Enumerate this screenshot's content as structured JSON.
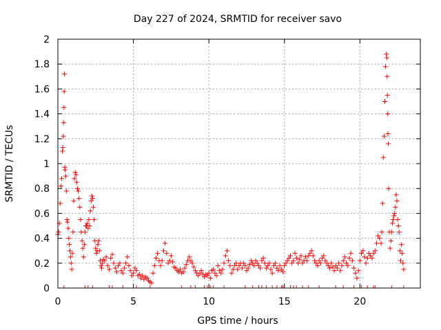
{
  "chart_data": {
    "type": "scatter",
    "title": "Day 227 of 2024, SRMTID for receiver savo",
    "xlabel": "GPS time / hours",
    "ylabel": "SRMTID / TECUs",
    "xlim": [
      0,
      24
    ],
    "ylim": [
      0,
      2
    ],
    "xticks": [
      0,
      5,
      10,
      15,
      20
    ],
    "xtick_labels": [
      "0",
      "5",
      "10",
      "15",
      "20"
    ],
    "yticks": [
      0,
      0.2,
      0.4,
      0.6,
      0.8,
      1,
      1.2,
      1.4,
      1.6,
      1.8,
      2
    ],
    "ytick_labels": [
      "0",
      "0.2",
      "0.4",
      "0.6",
      "0.8",
      "1",
      "1.2",
      "1.4",
      "1.6",
      "1.8",
      "2"
    ],
    "grid": true,
    "marker": "+",
    "color": "#ff0000",
    "series": [
      {
        "name": "savo",
        "points": [
          [
            0.0,
            0.43
          ],
          [
            0.05,
            0.45
          ],
          [
            0.1,
            0.52
          ],
          [
            0.15,
            0.68
          ],
          [
            0.2,
            0.82
          ],
          [
            0.25,
            0.88
          ],
          [
            0.3,
            1.1
          ],
          [
            0.33,
            1.13
          ],
          [
            0.36,
            1.22
          ],
          [
            0.38,
            1.33
          ],
          [
            0.4,
            1.45
          ],
          [
            0.42,
            1.58
          ],
          [
            0.44,
            1.72
          ],
          [
            0.46,
            0.97
          ],
          [
            0.48,
            0.95
          ],
          [
            0.52,
            0.9
          ],
          [
            0.56,
            0.78
          ],
          [
            0.6,
            0.55
          ],
          [
            0.64,
            0.53
          ],
          [
            0.68,
            0.48
          ],
          [
            0.72,
            0.4
          ],
          [
            0.76,
            0.35
          ],
          [
            0.8,
            0.3
          ],
          [
            0.84,
            0.25
          ],
          [
            0.88,
            0.2
          ],
          [
            0.92,
            0.15
          ],
          [
            0.96,
            0.28
          ],
          [
            1.0,
            0.45
          ],
          [
            1.05,
            0.7
          ],
          [
            1.1,
            0.88
          ],
          [
            1.15,
            0.93
          ],
          [
            1.2,
            0.91
          ],
          [
            1.25,
            0.85
          ],
          [
            1.3,
            0.8
          ],
          [
            1.35,
            0.78
          ],
          [
            1.4,
            0.72
          ],
          [
            1.45,
            0.65
          ],
          [
            1.5,
            0.55
          ],
          [
            1.55,
            0.45
          ],
          [
            1.6,
            0.38
          ],
          [
            1.65,
            0.32
          ],
          [
            1.7,
            0.25
          ],
          [
            1.75,
            0.35
          ],
          [
            1.8,
            0.45
          ],
          [
            1.85,
            0.5
          ],
          [
            1.9,
            0.5
          ],
          [
            1.95,
            0.52
          ],
          [
            2.0,
            0.48
          ],
          [
            2.05,
            0.55
          ],
          [
            2.1,
            0.5
          ],
          [
            2.15,
            0.62
          ],
          [
            2.2,
            0.7
          ],
          [
            2.25,
            0.74
          ],
          [
            2.3,
            0.72
          ],
          [
            2.35,
            0.65
          ],
          [
            2.4,
            0.55
          ],
          [
            2.45,
            0.38
          ],
          [
            2.5,
            0.32
          ],
          [
            2.55,
            0.28
          ],
          [
            2.6,
            0.3
          ],
          [
            2.65,
            0.35
          ],
          [
            2.7,
            0.38
          ],
          [
            2.75,
            0.3
          ],
          [
            2.8,
            0.22
          ],
          [
            2.85,
            0.18
          ],
          [
            2.9,
            0.16
          ],
          [
            2.95,
            0.2
          ],
          [
            3.0,
            0.23
          ],
          [
            3.1,
            0.22
          ],
          [
            3.2,
            0.25
          ],
          [
            3.3,
            0.18
          ],
          [
            3.4,
            0.15
          ],
          [
            3.5,
            0.24
          ],
          [
            3.6,
            0.27
          ],
          [
            3.7,
            0.2
          ],
          [
            3.8,
            0.16
          ],
          [
            3.9,
            0.13
          ],
          [
            4.0,
            0.18
          ],
          [
            4.1,
            0.2
          ],
          [
            4.2,
            0.14
          ],
          [
            4.3,
            0.12
          ],
          [
            4.4,
            0.16
          ],
          [
            4.5,
            0.2
          ],
          [
            4.6,
            0.25
          ],
          [
            4.7,
            0.18
          ],
          [
            4.8,
            0.14
          ],
          [
            4.9,
            0.1
          ],
          [
            5.0,
            0.12
          ],
          [
            5.1,
            0.16
          ],
          [
            5.2,
            0.14
          ],
          [
            5.3,
            0.1
          ],
          [
            5.4,
            0.11
          ],
          [
            5.5,
            0.08
          ],
          [
            5.6,
            0.1
          ],
          [
            5.7,
            0.07
          ],
          [
            5.8,
            0.09
          ],
          [
            5.9,
            0.08
          ],
          [
            6.0,
            0.06
          ],
          [
            6.1,
            0.05
          ],
          [
            6.2,
            0.04
          ],
          [
            6.3,
            0.12
          ],
          [
            6.4,
            0.18
          ],
          [
            6.5,
            0.24
          ],
          [
            6.6,
            0.28
          ],
          [
            6.7,
            0.22
          ],
          [
            6.8,
            0.18
          ],
          [
            6.9,
            0.22
          ],
          [
            7.0,
            0.3
          ],
          [
            7.1,
            0.36
          ],
          [
            7.2,
            0.28
          ],
          [
            7.3,
            0.2
          ],
          [
            7.4,
            0.22
          ],
          [
            7.5,
            0.26
          ],
          [
            7.6,
            0.21
          ],
          [
            7.7,
            0.17
          ],
          [
            7.8,
            0.16
          ],
          [
            7.9,
            0.14
          ],
          [
            8.0,
            0.13
          ],
          [
            8.1,
            0.15
          ],
          [
            8.2,
            0.12
          ],
          [
            8.3,
            0.13
          ],
          [
            8.4,
            0.16
          ],
          [
            8.5,
            0.19
          ],
          [
            8.6,
            0.22
          ],
          [
            8.7,
            0.25
          ],
          [
            8.8,
            0.22
          ],
          [
            8.9,
            0.2
          ],
          [
            9.0,
            0.17
          ],
          [
            9.1,
            0.14
          ],
          [
            9.2,
            0.12
          ],
          [
            9.3,
            0.1
          ],
          [
            9.4,
            0.12
          ],
          [
            9.5,
            0.14
          ],
          [
            9.6,
            0.11
          ],
          [
            9.7,
            0.09
          ],
          [
            9.8,
            0.11
          ],
          [
            9.9,
            0.1
          ],
          [
            10.0,
            0.12
          ],
          [
            10.1,
            0.08
          ],
          [
            10.2,
            0.14
          ],
          [
            10.3,
            0.15
          ],
          [
            10.4,
            0.12
          ],
          [
            10.5,
            0.1
          ],
          [
            10.6,
            0.18
          ],
          [
            10.7,
            0.14
          ],
          [
            10.8,
            0.12
          ],
          [
            10.9,
            0.15
          ],
          [
            11.0,
            0.2
          ],
          [
            11.1,
            0.26
          ],
          [
            11.2,
            0.3
          ],
          [
            11.3,
            0.22
          ],
          [
            11.4,
            0.18
          ],
          [
            11.5,
            0.12
          ],
          [
            11.6,
            0.15
          ],
          [
            11.7,
            0.18
          ],
          [
            11.8,
            0.2
          ],
          [
            11.9,
            0.15
          ],
          [
            12.0,
            0.18
          ],
          [
            12.1,
            0.2
          ],
          [
            12.2,
            0.16
          ],
          [
            12.3,
            0.2
          ],
          [
            12.4,
            0.18
          ],
          [
            12.5,
            0.14
          ],
          [
            12.6,
            0.16
          ],
          [
            12.7,
            0.19
          ],
          [
            12.8,
            0.22
          ],
          [
            12.9,
            0.2
          ],
          [
            13.0,
            0.18
          ],
          [
            13.1,
            0.22
          ],
          [
            13.2,
            0.2
          ],
          [
            13.3,
            0.18
          ],
          [
            13.4,
            0.16
          ],
          [
            13.5,
            0.22
          ],
          [
            13.6,
            0.24
          ],
          [
            13.7,
            0.2
          ],
          [
            13.8,
            0.16
          ],
          [
            13.9,
            0.18
          ],
          [
            14.0,
            0.2
          ],
          [
            14.1,
            0.15
          ],
          [
            14.2,
            0.12
          ],
          [
            14.3,
            0.18
          ],
          [
            14.4,
            0.2
          ],
          [
            14.5,
            0.16
          ],
          [
            14.6,
            0.14
          ],
          [
            14.7,
            0.18
          ],
          [
            14.8,
            0.15
          ],
          [
            14.9,
            0.13
          ],
          [
            15.0,
            0.18
          ],
          [
            15.1,
            0.2
          ],
          [
            15.2,
            0.22
          ],
          [
            15.3,
            0.24
          ],
          [
            15.4,
            0.26
          ],
          [
            15.5,
            0.2
          ],
          [
            15.6,
            0.22
          ],
          [
            15.7,
            0.28
          ],
          [
            15.8,
            0.24
          ],
          [
            15.9,
            0.2
          ],
          [
            16.0,
            0.23
          ],
          [
            16.1,
            0.26
          ],
          [
            16.2,
            0.2
          ],
          [
            16.3,
            0.22
          ],
          [
            16.4,
            0.25
          ],
          [
            16.5,
            0.22
          ],
          [
            16.6,
            0.26
          ],
          [
            16.7,
            0.28
          ],
          [
            16.8,
            0.3
          ],
          [
            16.9,
            0.26
          ],
          [
            17.0,
            0.22
          ],
          [
            17.1,
            0.2
          ],
          [
            17.2,
            0.18
          ],
          [
            17.3,
            0.22
          ],
          [
            17.4,
            0.2
          ],
          [
            17.5,
            0.24
          ],
          [
            17.6,
            0.26
          ],
          [
            17.7,
            0.22
          ],
          [
            17.8,
            0.2
          ],
          [
            17.9,
            0.18
          ],
          [
            18.0,
            0.16
          ],
          [
            18.1,
            0.2
          ],
          [
            18.2,
            0.17
          ],
          [
            18.3,
            0.14
          ],
          [
            18.4,
            0.18
          ],
          [
            18.5,
            0.16
          ],
          [
            18.6,
            0.2
          ],
          [
            18.7,
            0.14
          ],
          [
            18.8,
            0.18
          ],
          [
            18.9,
            0.22
          ],
          [
            19.0,
            0.25
          ],
          [
            19.1,
            0.2
          ],
          [
            19.2,
            0.18
          ],
          [
            19.3,
            0.24
          ],
          [
            19.4,
            0.28
          ],
          [
            19.5,
            0.22
          ],
          [
            19.6,
            0.16
          ],
          [
            19.7,
            0.12
          ],
          [
            19.8,
            0.08
          ],
          [
            19.9,
            0.14
          ],
          [
            20.0,
            0.22
          ],
          [
            20.1,
            0.28
          ],
          [
            20.2,
            0.3
          ],
          [
            20.3,
            0.25
          ],
          [
            20.4,
            0.2
          ],
          [
            20.5,
            0.24
          ],
          [
            20.6,
            0.28
          ],
          [
            20.7,
            0.26
          ],
          [
            20.8,
            0.24
          ],
          [
            20.9,
            0.28
          ],
          [
            21.0,
            0.3
          ],
          [
            21.1,
            0.36
          ],
          [
            21.2,
            0.42
          ],
          [
            21.3,
            0.4
          ],
          [
            21.4,
            0.36
          ],
          [
            21.45,
            0.45
          ],
          [
            21.5,
            0.68
          ],
          [
            21.55,
            1.05
          ],
          [
            21.6,
            1.22
          ],
          [
            21.65,
            1.5
          ],
          [
            21.7,
            1.78
          ],
          [
            21.75,
            1.88
          ],
          [
            21.78,
            1.85
          ],
          [
            21.8,
            1.7
          ],
          [
            21.82,
            1.55
          ],
          [
            21.84,
            1.4
          ],
          [
            21.86,
            1.24
          ],
          [
            21.88,
            1.16
          ],
          [
            21.9,
            0.8
          ],
          [
            21.95,
            0.45
          ],
          [
            22.0,
            0.32
          ],
          [
            22.05,
            0.38
          ],
          [
            22.1,
            0.45
          ],
          [
            22.15,
            0.52
          ],
          [
            22.2,
            0.55
          ],
          [
            22.25,
            0.58
          ],
          [
            22.3,
            0.6
          ],
          [
            22.35,
            0.65
          ],
          [
            22.4,
            0.75
          ],
          [
            22.45,
            0.7
          ],
          [
            22.5,
            0.55
          ],
          [
            22.55,
            0.5
          ],
          [
            22.6,
            0.45
          ],
          [
            22.65,
            0.3
          ],
          [
            22.7,
            0.22
          ],
          [
            22.75,
            0.35
          ],
          [
            22.8,
            0.28
          ],
          [
            22.85,
            0.2
          ],
          [
            22.9,
            0.15
          ]
        ]
      }
    ],
    "baseline_x": [
      0.4,
      1.8,
      2.0,
      2.3,
      3.4,
      3.6,
      4.3,
      5.2,
      6.1,
      8.2,
      8.8,
      9.1,
      9.7,
      9.9,
      10.1,
      10.3,
      11.0,
      12.4,
      12.9,
      13.3,
      13.5,
      13.8,
      14.2,
      14.5,
      14.8,
      14.9,
      15.4,
      15.6,
      15.8,
      16.2,
      16.6,
      17.3,
      18.4,
      18.9,
      19.6,
      20.1,
      20.5,
      20.9,
      21.0,
      22.1,
      22.9
    ]
  }
}
